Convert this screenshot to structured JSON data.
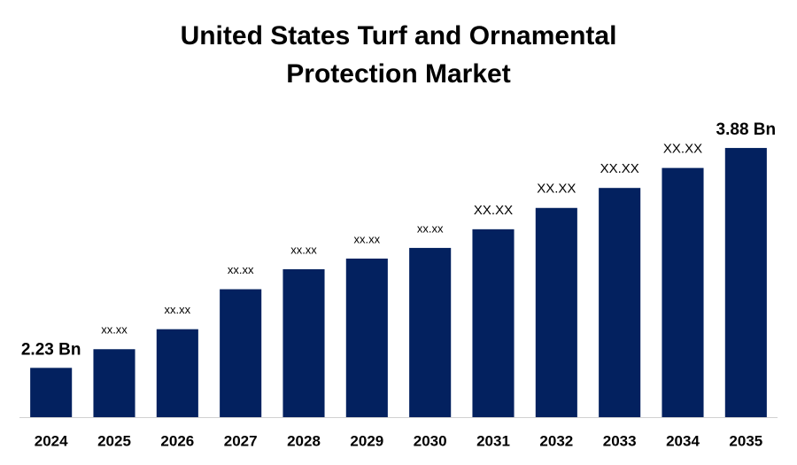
{
  "chart_data": {
    "type": "bar",
    "title": [
      "United States Turf and Ornamental",
      "Protection Market"
    ],
    "categories": [
      "2024",
      "2025",
      "2026",
      "2027",
      "2028",
      "2029",
      "2030",
      "2031",
      "2032",
      "2033",
      "2034",
      "2035"
    ],
    "values": [
      2.23,
      2.37,
      2.52,
      2.82,
      2.97,
      3.05,
      3.13,
      3.27,
      3.43,
      3.58,
      3.73,
      3.88
    ],
    "value_labels": [
      "2.23 Bn",
      "xx.xx",
      "xx.xx",
      "xx.xx",
      "xx.xx",
      "xx.xx",
      "xx.xx",
      "XX.XX",
      "XX.XX",
      "XX.XX",
      "XX.XX",
      "3.88 Bn"
    ],
    "color": "#03215f",
    "ylim": [
      1.86,
      4.0
    ],
    "grid": false
  }
}
